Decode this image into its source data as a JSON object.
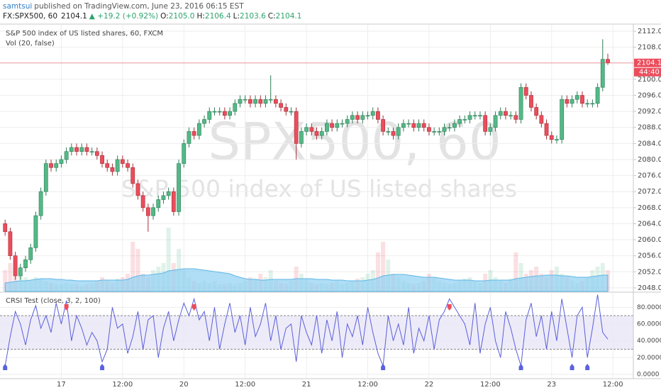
{
  "header": {
    "author": "samtsui",
    "published": "published on TradingView.com, June 23, 2016 06:15 EST",
    "symbol": "FX:SPX500, 60",
    "last": "2104.1",
    "change": "▲ +19.2 (+0.92%)",
    "o_label": "O:",
    "o": "2105.0",
    "h_label": "H:",
    "h": "2106.4",
    "l_label": "L:",
    "l": "2103.6",
    "c_label": "C:",
    "c": "2104.1"
  },
  "chart_data": [
    {
      "type": "candlestick",
      "title": "S&P 500 index of US listed shares, 60, FXCM",
      "watermark": "SPX500, 60",
      "watermark_subtitle": "S&P 500 index of US listed shares",
      "volume_label": "Vol (20, false)",
      "price_tag": "2104.1",
      "countdown": "44:40",
      "up_color": "#53b987",
      "down_color": "#eb4d5c",
      "volume_ma_color": "#8fd0f2",
      "grid": true,
      "xlim": [
        -1,
        123
      ],
      "ylim": [
        2047.1,
        2113.6
      ],
      "yticks": [
        {
          "value": 2048,
          "label": "2048.0"
        },
        {
          "value": 2052,
          "label": "2052.0"
        },
        {
          "value": 2056,
          "label": "2056.0"
        },
        {
          "value": 2060,
          "label": "2060.0"
        },
        {
          "value": 2064,
          "label": "2064.0"
        },
        {
          "value": 2068,
          "label": "2068.0"
        },
        {
          "value": 2072,
          "label": "2072.0"
        },
        {
          "value": 2076,
          "label": "2076.0"
        },
        {
          "value": 2080,
          "label": "2080.0"
        },
        {
          "value": 2084,
          "label": "2084.0"
        },
        {
          "value": 2088,
          "label": "2088.0"
        },
        {
          "value": 2092,
          "label": "2092.0"
        },
        {
          "value": 2096,
          "label": "2096.0"
        },
        {
          "value": 2100,
          "label": "2100.0"
        },
        {
          "value": 2104,
          "label": "2104.0"
        },
        {
          "value": 2108,
          "label": "2108.0"
        },
        {
          "value": 2112,
          "label": "2112.0"
        }
      ],
      "open": [
        2064,
        2062,
        2056,
        2051,
        2053,
        2055,
        2058,
        2066,
        2072,
        2079,
        2078,
        2079,
        2080,
        2082,
        2083,
        2082,
        2083,
        2082,
        2082,
        2081,
        2079,
        2078,
        2077,
        2080,
        2079,
        2078,
        2074,
        2071,
        2068,
        2066,
        2068,
        2070,
        2071,
        2072,
        2067,
        2079,
        2084,
        2087,
        2086,
        2089,
        2090,
        2092,
        2092,
        2092,
        2091,
        2092,
        2094,
        2095,
        2095,
        2094,
        2095,
        2094,
        2095,
        2095,
        2094,
        2093,
        2092,
        2092,
        2084,
        2087,
        2088,
        2087,
        2086,
        2087,
        2089,
        2088,
        2089,
        2089,
        2090,
        2091,
        2090,
        2091,
        2091,
        2092,
        2090,
        2087,
        2087,
        2086,
        2088,
        2089,
        2089,
        2088,
        2089,
        2088,
        2087,
        2087,
        2087,
        2088,
        2088,
        2089,
        2090,
        2090,
        2091,
        2091,
        2091,
        2087,
        2088,
        2091,
        2092,
        2091,
        2091,
        2090,
        2098,
        2096,
        2093,
        2091,
        2089,
        2086,
        2085,
        2085,
        2095,
        2094,
        2095,
        2096,
        2094,
        2094,
        2094,
        2098,
        2105
      ],
      "high": [
        2065,
        2063,
        2057,
        2054,
        2056,
        2059,
        2067,
        2073,
        2080,
        2080,
        2080,
        2081,
        2083,
        2084,
        2084,
        2084,
        2084,
        2083,
        2083,
        2082,
        2080,
        2079,
        2081,
        2081,
        2080,
        2079,
        2075,
        2072,
        2069,
        2069,
        2071,
        2072,
        2073,
        2073,
        2080,
        2085,
        2088,
        2088,
        2090,
        2091,
        2093,
        2093,
        2093,
        2093,
        2093,
        2095,
        2096,
        2096,
        2096,
        2096,
        2096,
        2096,
        2101,
        2096,
        2095,
        2094,
        2093,
        2093,
        2088,
        2089,
        2089,
        2088,
        2088,
        2090,
        2090,
        2090,
        2090,
        2091,
        2092,
        2092,
        2092,
        2092,
        2093,
        2093,
        2091,
        2088,
        2088,
        2089,
        2090,
        2090,
        2090,
        2090,
        2090,
        2089,
        2088,
        2088,
        2089,
        2089,
        2090,
        2091,
        2091,
        2092,
        2092,
        2092,
        2092,
        2089,
        2092,
        2093,
        2093,
        2092,
        2092,
        2099,
        2099,
        2097,
        2094,
        2092,
        2090,
        2087,
        2086,
        2096,
        2096,
        2096,
        2097,
        2097,
        2095,
        2095,
        2099,
        2110,
        2106.4
      ],
      "low": [
        2061,
        2055,
        2050,
        2050,
        2052,
        2054,
        2057,
        2065,
        2071,
        2077,
        2077,
        2078,
        2079,
        2081,
        2081,
        2081,
        2081,
        2081,
        2080,
        2078,
        2077,
        2076,
        2076,
        2078,
        2077,
        2073,
        2070,
        2067,
        2062,
        2065,
        2067,
        2069,
        2070,
        2066,
        2066,
        2078,
        2083,
        2085,
        2085,
        2088,
        2089,
        2091,
        2091,
        2090,
        2090,
        2091,
        2093,
        2094,
        2093,
        2093,
        2093,
        2093,
        2094,
        2093,
        2092,
        2091,
        2091,
        2080,
        2083,
        2086,
        2086,
        2085,
        2085,
        2086,
        2087,
        2087,
        2088,
        2088,
        2089,
        2089,
        2089,
        2090,
        2090,
        2089,
        2086,
        2086,
        2085,
        2085,
        2087,
        2088,
        2087,
        2087,
        2087,
        2086,
        2086,
        2086,
        2086,
        2087,
        2087,
        2088,
        2089,
        2089,
        2090,
        2090,
        2086,
        2086,
        2087,
        2090,
        2090,
        2090,
        2089,
        2089,
        2095,
        2092,
        2090,
        2088,
        2085,
        2084,
        2084,
        2084,
        2093,
        2093,
        2094,
        2093,
        2093,
        2093,
        2093,
        2097,
        2103.6
      ],
      "close": [
        2062,
        2056,
        2051,
        2053,
        2055,
        2058,
        2066,
        2072,
        2079,
        2078,
        2079,
        2080,
        2082,
        2083,
        2082,
        2083,
        2082,
        2082,
        2081,
        2079,
        2078,
        2077,
        2080,
        2079,
        2078,
        2074,
        2071,
        2068,
        2066,
        2068,
        2070,
        2071,
        2072,
        2067,
        2079,
        2084,
        2087,
        2086,
        2089,
        2090,
        2092,
        2092,
        2092,
        2091,
        2092,
        2094,
        2095,
        2095,
        2094,
        2095,
        2094,
        2095,
        2095,
        2094,
        2093,
        2092,
        2092,
        2084,
        2087,
        2088,
        2087,
        2086,
        2087,
        2089,
        2088,
        2089,
        2089,
        2090,
        2091,
        2090,
        2091,
        2091,
        2092,
        2090,
        2087,
        2087,
        2086,
        2088,
        2089,
        2089,
        2088,
        2089,
        2088,
        2087,
        2087,
        2087,
        2088,
        2088,
        2089,
        2090,
        2090,
        2091,
        2091,
        2091,
        2087,
        2088,
        2091,
        2092,
        2091,
        2091,
        2090,
        2098,
        2096,
        2093,
        2091,
        2089,
        2086,
        2085,
        2085,
        2095,
        2094,
        2095,
        2096,
        2094,
        2094,
        2094,
        2098,
        2105,
        2104.1
      ],
      "volume": [
        30,
        40,
        35,
        25,
        20,
        15,
        20,
        18,
        15,
        12,
        10,
        10,
        12,
        10,
        10,
        8,
        10,
        12,
        15,
        20,
        15,
        12,
        18,
        20,
        25,
        70,
        60,
        25,
        20,
        30,
        35,
        40,
        90,
        40,
        60,
        30,
        20,
        15,
        12,
        15,
        12,
        15,
        10,
        10,
        12,
        10,
        12,
        15,
        20,
        18,
        25,
        20,
        30,
        15,
        12,
        10,
        15,
        35,
        25,
        18,
        12,
        10,
        12,
        10,
        12,
        15,
        10,
        12,
        15,
        18,
        20,
        25,
        30,
        55,
        70,
        45,
        25,
        20,
        15,
        12,
        10,
        12,
        15,
        25,
        20,
        15,
        12,
        10,
        12,
        15,
        18,
        20,
        15,
        12,
        25,
        30,
        20,
        15,
        12,
        18,
        55,
        40,
        25,
        30,
        35,
        25,
        20,
        30,
        35,
        25,
        20,
        15,
        12,
        15,
        20,
        30,
        35,
        40,
        30
      ],
      "volume_ma": [
        12,
        13,
        14,
        15,
        15,
        16,
        17,
        18,
        18,
        18,
        17,
        17,
        16,
        16,
        15,
        15,
        15,
        15,
        15,
        16,
        16,
        16,
        16,
        16,
        17,
        20,
        22,
        23,
        23,
        24,
        25,
        26,
        29,
        30,
        31,
        32,
        32,
        32,
        31,
        30,
        29,
        28,
        27,
        26,
        25,
        22,
        20,
        18,
        17,
        17,
        16,
        16,
        17,
        17,
        17,
        17,
        17,
        18,
        18,
        18,
        18,
        17,
        17,
        17,
        16,
        16,
        16,
        15,
        15,
        15,
        15,
        16,
        17,
        19,
        22,
        23,
        24,
        24,
        24,
        23,
        22,
        21,
        20,
        20,
        20,
        19,
        18,
        17,
        16,
        16,
        16,
        16,
        15,
        15,
        15,
        16,
        16,
        16,
        16,
        16,
        18,
        19,
        20,
        21,
        22,
        22,
        23,
        23,
        23,
        22,
        22,
        21,
        20,
        20,
        20,
        21,
        22,
        23,
        23
      ]
    },
    {
      "type": "line",
      "title": "CRSI Test (close, 3, 2, 100)",
      "color": "#5b5fdb",
      "band": [
        30,
        70
      ],
      "band_color": "#e8e6f6",
      "grid": true,
      "sell_signals": [
        12,
        37,
        87
      ],
      "buy_signals": [
        0,
        19,
        74,
        101,
        111,
        114
      ],
      "sell_color": "#eb4d5c",
      "buy_color": "#5a62e0",
      "xlim": [
        -1,
        123
      ],
      "ylim": [
        -4.3,
        97.2
      ],
      "xticks": [
        {
          "value": 11,
          "label": "17"
        },
        {
          "value": 23,
          "label": "12:00"
        },
        {
          "value": 35,
          "label": "20"
        },
        {
          "value": 47,
          "label": "12:00"
        },
        {
          "value": 59,
          "label": "21"
        },
        {
          "value": 71,
          "label": "12:00"
        },
        {
          "value": 83,
          "label": "22"
        },
        {
          "value": 95,
          "label": "12:00"
        },
        {
          "value": 107,
          "label": "23"
        },
        {
          "value": 119,
          "label": "12:00"
        }
      ],
      "yticks": [
        {
          "value": 0,
          "label": "0.0000"
        },
        {
          "value": 20,
          "label": "20.0000"
        },
        {
          "value": 40,
          "label": "40.0000"
        },
        {
          "value": 60,
          "label": "60.0000"
        },
        {
          "value": 80,
          "label": "80.0000"
        }
      ],
      "values": [
        10,
        45,
        75,
        60,
        35,
        65,
        82,
        55,
        70,
        50,
        85,
        60,
        88,
        40,
        70,
        55,
        35,
        50,
        40,
        15,
        30,
        80,
        55,
        60,
        25,
        45,
        75,
        30,
        65,
        70,
        20,
        55,
        75,
        40,
        65,
        85,
        70,
        90,
        65,
        75,
        40,
        80,
        30,
        60,
        85,
        50,
        70,
        35,
        80,
        45,
        60,
        85,
        40,
        70,
        30,
        55,
        60,
        15,
        70,
        50,
        35,
        70,
        25,
        65,
        40,
        75,
        20,
        60,
        45,
        70,
        35,
        80,
        50,
        25,
        10,
        70,
        40,
        60,
        35,
        80,
        25,
        55,
        40,
        70,
        30,
        65,
        75,
        90,
        80,
        70,
        60,
        35,
        85,
        25,
        60,
        80,
        40,
        20,
        75,
        55,
        30,
        10,
        65,
        85,
        45,
        70,
        30,
        75,
        40,
        90,
        55,
        20,
        70,
        80,
        20,
        55,
        95,
        50,
        42
      ]
    }
  ]
}
